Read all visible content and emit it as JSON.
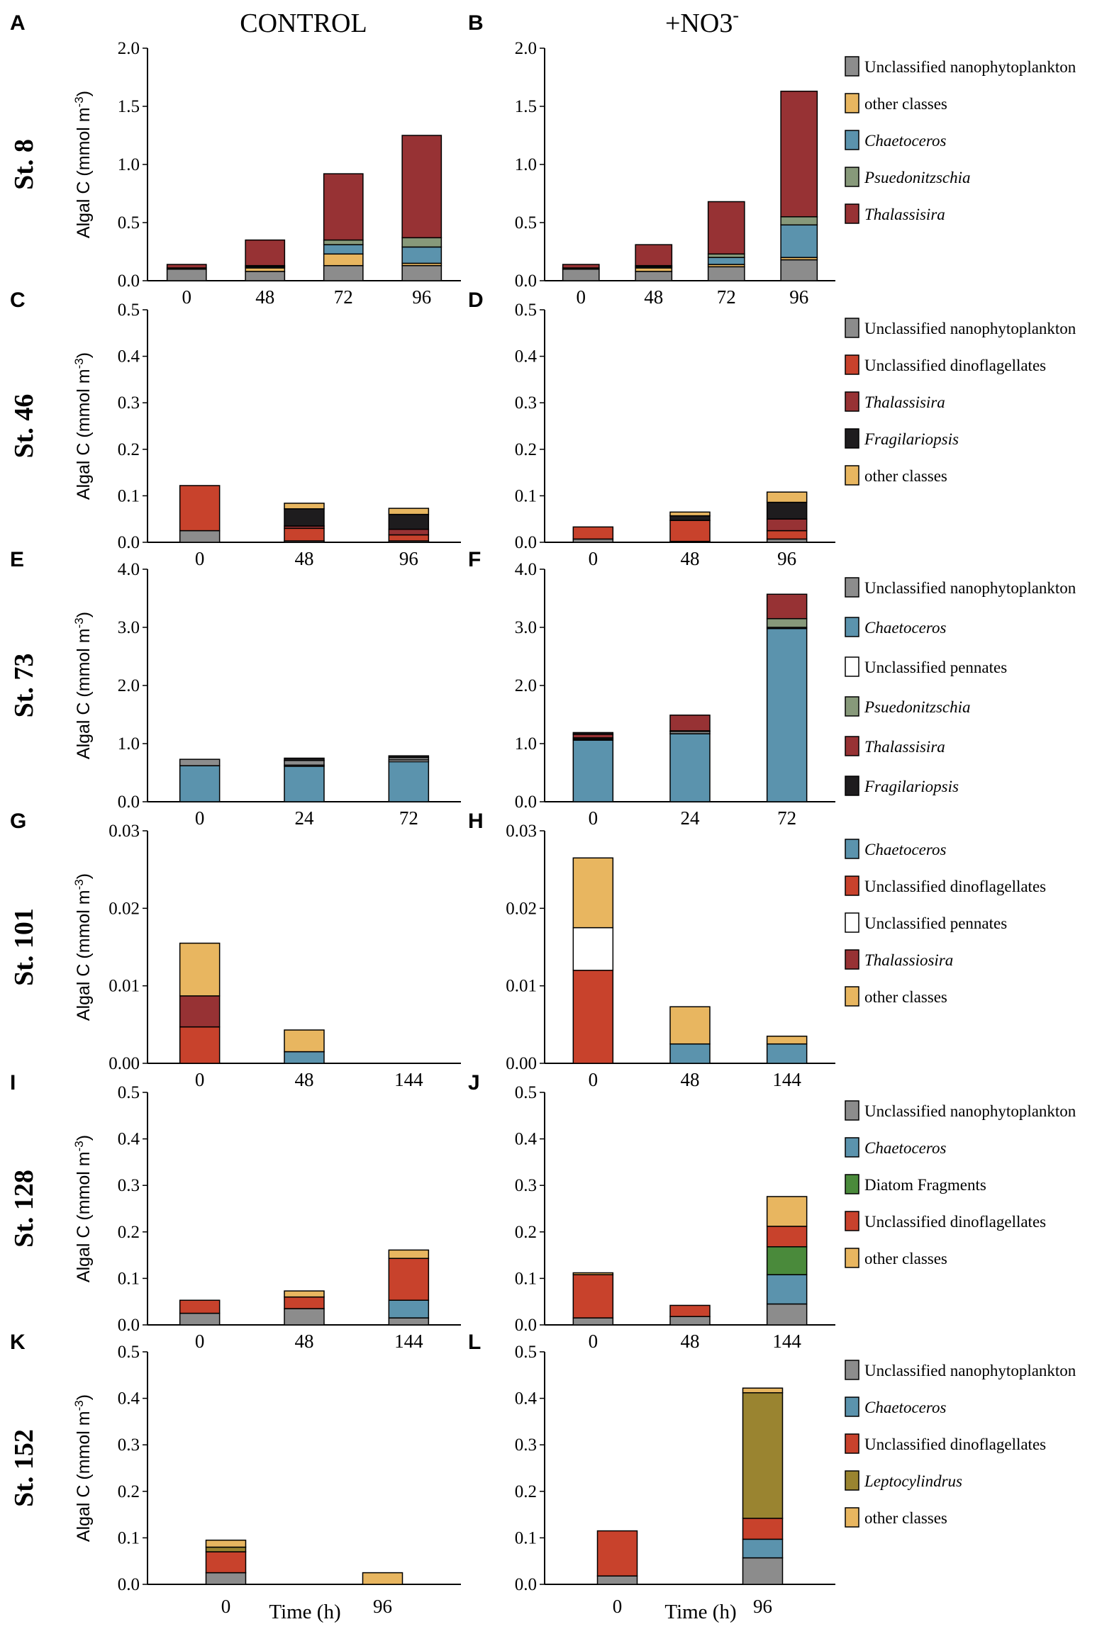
{
  "column_titles": {
    "control": "CONTROL",
    "nitrate_base": "+NO3",
    "nitrate_sup": "-"
  },
  "ylabel_text": "Algal C (mmol m",
  "ylabel_sup": "-3",
  "ylabel_close": ")",
  "xlabel": "Time (h)",
  "colors": {
    "Unclassified nanophytoplankton": "#8c8c8c",
    "other classes": "#e8b660",
    "Chaetoceros": "#5b93ad",
    "Psuedonitzschia": "#87997a",
    "Thalassisira": "#973234",
    "Thalassiosira": "#973234",
    "Unclassified dinoflagellates": "#c8422c",
    "Fragilariopsis": "#1e1c1e",
    "Unclassified pennates": "#ffffff",
    "Diatom Fragments": "#4a8a3b",
    "Leptocylindrus": "#9a8430"
  },
  "rows": [
    {
      "station": "St. 8",
      "letters": [
        "A",
        "B"
      ],
      "ylim": [
        0,
        2.0
      ],
      "yticks": [
        "0.0",
        "0.5",
        "1.0",
        "1.5",
        "2.0"
      ],
      "categories": [
        "0",
        "48",
        "72",
        "96"
      ],
      "legend": [
        {
          "name": "Unclassified nanophytoplankton",
          "italic": false
        },
        {
          "name": "other classes",
          "italic": false
        },
        {
          "name": "Chaetoceros",
          "italic": true
        },
        {
          "name": "Psuedonitzschia",
          "italic": true
        },
        {
          "name": "Thalassisira",
          "italic": true
        }
      ]
    },
    {
      "station": "St. 46",
      "letters": [
        "C",
        "D"
      ],
      "ylim": [
        0,
        0.5
      ],
      "yticks": [
        "0.0",
        "0.1",
        "0.2",
        "0.3",
        "0.4",
        "0.5"
      ],
      "categories": [
        "0",
        "48",
        "96"
      ],
      "legend": [
        {
          "name": "Unclassified nanophytoplankton",
          "italic": false
        },
        {
          "name": "Unclassified dinoflagellates",
          "italic": false
        },
        {
          "name": "Thalassisira",
          "italic": true
        },
        {
          "name": "Fragilariopsis",
          "italic": true
        },
        {
          "name": "other classes",
          "italic": false
        }
      ]
    },
    {
      "station": "St. 73",
      "letters": [
        "E",
        "F"
      ],
      "ylim": [
        0,
        4.0
      ],
      "yticks": [
        "0.0",
        "1.0",
        "2.0",
        "3.0",
        "4.0"
      ],
      "categories": [
        "0",
        "24",
        "72"
      ],
      "legend": [
        {
          "name": "Unclassified nanophytoplankton",
          "italic": false
        },
        {
          "name": "Chaetoceros",
          "italic": true
        },
        {
          "name": "Unclassified pennates",
          "italic": false
        },
        {
          "name": "Psuedonitzschia",
          "italic": true
        },
        {
          "name": "Thalassisira",
          "italic": true
        },
        {
          "name": "Fragilariopsis",
          "italic": true
        }
      ]
    },
    {
      "station": "St. 101",
      "letters": [
        "G",
        "H"
      ],
      "ylim": [
        0,
        0.03
      ],
      "yticks": [
        "0.00",
        "0.01",
        "0.02",
        "0.03"
      ],
      "categories": [
        "0",
        "48",
        "144"
      ],
      "legend": [
        {
          "name": "Chaetoceros",
          "italic": true
        },
        {
          "name": "Unclassified dinoflagellates",
          "italic": false
        },
        {
          "name": "Unclassified pennates",
          "italic": false
        },
        {
          "name": "Thalassiosira",
          "italic": true
        },
        {
          "name": "other classes",
          "italic": false
        }
      ]
    },
    {
      "station": "St. 128",
      "letters": [
        "I",
        "J"
      ],
      "ylim": [
        0,
        0.5
      ],
      "yticks": [
        "0.0",
        "0.1",
        "0.2",
        "0.3",
        "0.4",
        "0.5"
      ],
      "categories": [
        "0",
        "48",
        "144"
      ],
      "legend": [
        {
          "name": "Unclassified nanophytoplankton",
          "italic": false
        },
        {
          "name": "Chaetoceros",
          "italic": true
        },
        {
          "name": "Diatom Fragments",
          "italic": false
        },
        {
          "name": "Unclassified dinoflagellates",
          "italic": false
        },
        {
          "name": "other classes",
          "italic": false
        }
      ]
    },
    {
      "station": "St. 152",
      "letters": [
        "K",
        "L"
      ],
      "ylim": [
        0,
        0.5
      ],
      "yticks": [
        "0.0",
        "0.1",
        "0.2",
        "0.3",
        "0.4",
        "0.5"
      ],
      "categories": [
        "0",
        "96"
      ],
      "legend": [
        {
          "name": "Unclassified nanophytoplankton",
          "italic": false
        },
        {
          "name": "Chaetoceros",
          "italic": true
        },
        {
          "name": "Unclassified dinoflagellates",
          "italic": false
        },
        {
          "name": "Leptocylindrus",
          "italic": true
        },
        {
          "name": "other classes",
          "italic": false
        }
      ]
    }
  ],
  "chart_data": [
    {
      "type": "bar",
      "stacked": true,
      "panel": "A",
      "station": "St. 8",
      "treatment": "CONTROL",
      "ylim": [
        0,
        2.0
      ],
      "categories": [
        "0",
        "48",
        "72",
        "96"
      ],
      "series": [
        {
          "name": "Unclassified nanophytoplankton",
          "values": [
            0.1,
            0.08,
            0.13,
            0.13
          ]
        },
        {
          "name": "other classes",
          "values": [
            0.01,
            0.03,
            0.1,
            0.02
          ]
        },
        {
          "name": "Chaetoceros",
          "values": [
            0.0,
            0.01,
            0.08,
            0.14
          ]
        },
        {
          "name": "Psuedonitzschia",
          "values": [
            0.0,
            0.01,
            0.04,
            0.08
          ]
        },
        {
          "name": "Thalassisira",
          "values": [
            0.03,
            0.22,
            0.57,
            0.88
          ]
        }
      ]
    },
    {
      "type": "bar",
      "stacked": true,
      "panel": "B",
      "station": "St. 8",
      "treatment": "+NO3-",
      "ylim": [
        0,
        2.0
      ],
      "categories": [
        "0",
        "48",
        "72",
        "96"
      ],
      "series": [
        {
          "name": "Unclassified nanophytoplankton",
          "values": [
            0.1,
            0.08,
            0.12,
            0.18
          ]
        },
        {
          "name": "other classes",
          "values": [
            0.01,
            0.03,
            0.02,
            0.02
          ]
        },
        {
          "name": "Chaetoceros",
          "values": [
            0.0,
            0.01,
            0.06,
            0.28
          ]
        },
        {
          "name": "Psuedonitzschia",
          "values": [
            0.0,
            0.01,
            0.03,
            0.07
          ]
        },
        {
          "name": "Thalassisira",
          "values": [
            0.03,
            0.18,
            0.45,
            1.08
          ]
        }
      ]
    },
    {
      "type": "bar",
      "stacked": true,
      "panel": "C",
      "station": "St. 46",
      "treatment": "CONTROL",
      "ylim": [
        0,
        0.5
      ],
      "categories": [
        "0",
        "48",
        "96"
      ],
      "series": [
        {
          "name": "Unclassified nanophytoplankton",
          "values": [
            0.025,
            0.003,
            0.003
          ]
        },
        {
          "name": "Unclassified dinoflagellates",
          "values": [
            0.097,
            0.027,
            0.013
          ]
        },
        {
          "name": "Thalassisira",
          "values": [
            0.0,
            0.005,
            0.012
          ]
        },
        {
          "name": "Fragilariopsis",
          "values": [
            0.0,
            0.037,
            0.032
          ]
        },
        {
          "name": "other classes",
          "values": [
            0.0,
            0.012,
            0.013
          ]
        }
      ]
    },
    {
      "type": "bar",
      "stacked": true,
      "panel": "D",
      "station": "St. 46",
      "treatment": "+NO3-",
      "ylim": [
        0,
        0.5
      ],
      "categories": [
        "0",
        "48",
        "96"
      ],
      "series": [
        {
          "name": "Unclassified nanophytoplankton",
          "values": [
            0.007,
            0.002,
            0.007
          ]
        },
        {
          "name": "Unclassified dinoflagellates",
          "values": [
            0.026,
            0.045,
            0.018
          ]
        },
        {
          "name": "Thalassisira",
          "values": [
            0.0,
            0.0,
            0.025
          ]
        },
        {
          "name": "Fragilariopsis",
          "values": [
            0.0,
            0.01,
            0.036
          ]
        },
        {
          "name": "other classes",
          "values": [
            0.0,
            0.008,
            0.022
          ]
        }
      ]
    },
    {
      "type": "bar",
      "stacked": true,
      "panel": "E",
      "station": "St. 73",
      "treatment": "CONTROL",
      "ylim": [
        0,
        4.0
      ],
      "categories": [
        "0",
        "24",
        "72"
      ],
      "series": [
        {
          "name": "Chaetoceros",
          "values": [
            0.62,
            0.61,
            0.69
          ]
        },
        {
          "name": "Unclassified pennates",
          "values": [
            0.0,
            0.02,
            0.03
          ]
        },
        {
          "name": "Unclassified nanophytoplankton",
          "values": [
            0.11,
            0.08,
            0.04
          ]
        },
        {
          "name": "Psuedonitzschia",
          "values": [
            0.0,
            0.0,
            0.0
          ]
        },
        {
          "name": "Thalassisira",
          "values": [
            0.0,
            0.0,
            0.0
          ]
        },
        {
          "name": "Fragilariopsis",
          "values": [
            0.0,
            0.04,
            0.03
          ]
        }
      ]
    },
    {
      "type": "bar",
      "stacked": true,
      "panel": "F",
      "station": "St. 73",
      "treatment": "+NO3-",
      "ylim": [
        0,
        4.0
      ],
      "categories": [
        "0",
        "24",
        "72"
      ],
      "series": [
        {
          "name": "Chaetoceros",
          "values": [
            1.06,
            1.17,
            2.98
          ]
        },
        {
          "name": "Unclassified pennates",
          "values": [
            0.0,
            0.0,
            0.0
          ]
        },
        {
          "name": "Unclassified nanophytoplankton",
          "values": [
            0.02,
            0.04,
            0.02
          ]
        },
        {
          "name": "Psuedonitzschia",
          "values": [
            0.02,
            0.01,
            0.15
          ]
        },
        {
          "name": "Thalassisira",
          "values": [
            0.06,
            0.27,
            0.42
          ]
        },
        {
          "name": "Fragilariopsis",
          "values": [
            0.03,
            0.0,
            0.0
          ]
        }
      ]
    },
    {
      "type": "bar",
      "stacked": true,
      "panel": "G",
      "station": "St. 101",
      "treatment": "CONTROL",
      "ylim": [
        0,
        0.03
      ],
      "categories": [
        "0",
        "48",
        "144"
      ],
      "series": [
        {
          "name": "Chaetoceros",
          "values": [
            0.0,
            0.0015,
            0.0
          ]
        },
        {
          "name": "Unclassified dinoflagellates",
          "values": [
            0.0047,
            0.0,
            0.0
          ]
        },
        {
          "name": "Unclassified pennates",
          "values": [
            0.0,
            0.0,
            0.0
          ]
        },
        {
          "name": "Thalassiosira",
          "values": [
            0.004,
            0.0,
            0.0
          ]
        },
        {
          "name": "other classes",
          "values": [
            0.0068,
            0.0028,
            0.0
          ]
        }
      ]
    },
    {
      "type": "bar",
      "stacked": true,
      "panel": "H",
      "station": "St. 101",
      "treatment": "+NO3-",
      "ylim": [
        0,
        0.03
      ],
      "categories": [
        "0",
        "48",
        "144"
      ],
      "series": [
        {
          "name": "Chaetoceros",
          "values": [
            0.0,
            0.0025,
            0.0025
          ]
        },
        {
          "name": "Unclassified dinoflagellates",
          "values": [
            0.012,
            0.0,
            0.0
          ]
        },
        {
          "name": "Unclassified pennates",
          "values": [
            0.0055,
            0.0,
            0.0
          ]
        },
        {
          "name": "Thalassiosira",
          "values": [
            0.0,
            0.0,
            0.0
          ]
        },
        {
          "name": "other classes",
          "values": [
            0.009,
            0.0048,
            0.001
          ]
        }
      ]
    },
    {
      "type": "bar",
      "stacked": true,
      "panel": "I",
      "station": "St. 128",
      "treatment": "CONTROL",
      "ylim": [
        0,
        0.5
      ],
      "categories": [
        "0",
        "48",
        "144"
      ],
      "series": [
        {
          "name": "Unclassified nanophytoplankton",
          "values": [
            0.025,
            0.035,
            0.015
          ]
        },
        {
          "name": "Chaetoceros",
          "values": [
            0.0,
            0.0,
            0.038
          ]
        },
        {
          "name": "Diatom Fragments",
          "values": [
            0.0,
            0.0,
            0.0
          ]
        },
        {
          "name": "Unclassified dinoflagellates",
          "values": [
            0.028,
            0.025,
            0.09
          ]
        },
        {
          "name": "other classes",
          "values": [
            0.0,
            0.013,
            0.018
          ]
        }
      ]
    },
    {
      "type": "bar",
      "stacked": true,
      "panel": "J",
      "station": "St. 128",
      "treatment": "+NO3-",
      "ylim": [
        0,
        0.5
      ],
      "categories": [
        "0",
        "48",
        "144"
      ],
      "series": [
        {
          "name": "Unclassified nanophytoplankton",
          "values": [
            0.015,
            0.018,
            0.045
          ]
        },
        {
          "name": "Chaetoceros",
          "values": [
            0.0,
            0.0,
            0.063
          ]
        },
        {
          "name": "Diatom Fragments",
          "values": [
            0.0,
            0.0,
            0.06
          ]
        },
        {
          "name": "Unclassified dinoflagellates",
          "values": [
            0.093,
            0.024,
            0.044
          ]
        },
        {
          "name": "other classes",
          "values": [
            0.004,
            0.0,
            0.064
          ]
        }
      ]
    },
    {
      "type": "bar",
      "stacked": true,
      "panel": "K",
      "station": "St. 152",
      "treatment": "CONTROL",
      "ylim": [
        0,
        0.5
      ],
      "categories": [
        "0",
        "96"
      ],
      "series": [
        {
          "name": "Unclassified nanophytoplankton",
          "values": [
            0.025,
            0.0
          ]
        },
        {
          "name": "Chaetoceros",
          "values": [
            0.0,
            0.0
          ]
        },
        {
          "name": "Unclassified dinoflagellates",
          "values": [
            0.045,
            0.0
          ]
        },
        {
          "name": "Leptocylindrus",
          "values": [
            0.01,
            0.0
          ]
        },
        {
          "name": "other classes",
          "values": [
            0.015,
            0.025
          ]
        }
      ]
    },
    {
      "type": "bar",
      "stacked": true,
      "panel": "L",
      "station": "St. 152",
      "treatment": "+NO3-",
      "ylim": [
        0,
        0.5
      ],
      "categories": [
        "0",
        "96"
      ],
      "series": [
        {
          "name": "Unclassified nanophytoplankton",
          "values": [
            0.018,
            0.057
          ]
        },
        {
          "name": "Chaetoceros",
          "values": [
            0.0,
            0.04
          ]
        },
        {
          "name": "Unclassified dinoflagellates",
          "values": [
            0.097,
            0.045
          ]
        },
        {
          "name": "Leptocylindrus",
          "values": [
            0.0,
            0.27
          ]
        },
        {
          "name": "other classes",
          "values": [
            0.0,
            0.01
          ]
        }
      ]
    }
  ]
}
